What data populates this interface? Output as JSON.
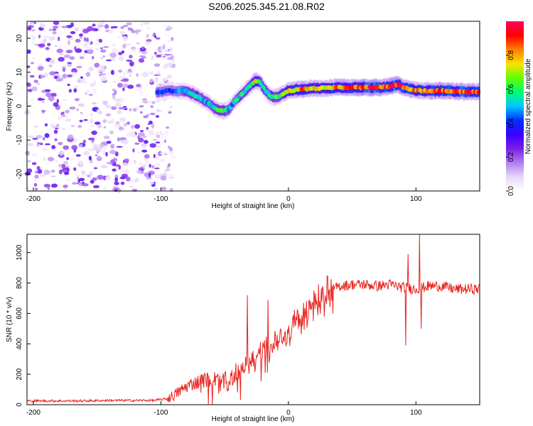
{
  "figure_title": "S206.2025.345.21.08.R02",
  "chart_data": [
    {
      "type": "heatmap",
      "name": "spectrogram",
      "xlabel": "Height of straight line (km)",
      "ylabel": "Frequency (Hz)",
      "xlim": [
        -205,
        150
      ],
      "ylim": [
        -25,
        25
      ],
      "xticks": [
        -200,
        -100,
        0,
        100
      ],
      "yticks": [
        20,
        10,
        0,
        -10,
        -20
      ],
      "colorbar": {
        "label": "Normalized spectral amplitude",
        "range": [
          0,
          1
        ],
        "ticks": [
          0.0,
          0.2,
          0.4,
          0.6,
          0.8
        ],
        "colormap": [
          "#ffffff",
          "#e8d8f8",
          "#b07df0",
          "#7a1fe8",
          "#3a00ff",
          "#0030ff",
          "#00c8ff",
          "#00ff70",
          "#60ff00",
          "#ffe000",
          "#ff8000",
          "#ff0000",
          "#ff0060"
        ]
      },
      "noise_region_x": [
        -205,
        -90
      ],
      "ridge": {
        "x": [
          -103,
          -95,
          -88,
          -80,
          -72,
          -65,
          -58,
          -52,
          -47,
          -43,
          -38,
          -34,
          -30,
          -26,
          -22,
          -18,
          -14,
          -10,
          -5,
          0,
          10,
          25,
          40,
          55,
          70,
          80,
          86,
          90,
          95,
          100,
          110,
          125,
          140,
          150
        ],
        "freq": [
          4,
          4.5,
          4.5,
          4.5,
          3,
          1.5,
          -0.5,
          -1.5,
          -1,
          1,
          3,
          4.5,
          6,
          7.5,
          7,
          4.5,
          3,
          2.5,
          3.5,
          4.5,
          5,
          5.3,
          5.5,
          5.5,
          5.5,
          5.8,
          6.5,
          5.5,
          5,
          4.6,
          4.5,
          4.5,
          4.2,
          4.2
        ],
        "peak_amplitude": [
          0.45,
          0.4,
          0.42,
          0.5,
          0.55,
          0.5,
          0.55,
          0.6,
          0.5,
          0.5,
          0.55,
          0.55,
          0.6,
          0.7,
          0.65,
          0.6,
          0.55,
          0.6,
          0.65,
          0.75,
          0.8,
          0.75,
          0.8,
          0.9,
          0.95,
          0.9,
          0.95,
          0.85,
          0.85,
          0.8,
          0.85,
          0.9,
          0.9,
          0.85
        ]
      }
    },
    {
      "type": "line",
      "name": "snr",
      "xlabel": "Height of straight line (km)",
      "ylabel": "SNR (10 * v/v)",
      "xlim": [
        -205,
        150
      ],
      "ylim": [
        0,
        1120
      ],
      "xticks": [
        -200,
        -100,
        0,
        100
      ],
      "yticks": [
        0,
        200,
        400,
        600,
        800,
        1000
      ],
      "color": "#e8241e",
      "series": [
        {
          "name": "SNR",
          "x": [
            -205,
            -180,
            -160,
            -140,
            -120,
            -105,
            -95,
            -90,
            -85,
            -80,
            -75,
            -70,
            -65,
            -60,
            -55,
            -50,
            -45,
            -40,
            -35,
            -30,
            -25,
            -20,
            -15,
            -10,
            -5,
            0,
            5,
            10,
            15,
            20,
            25,
            30,
            35,
            40,
            50,
            60,
            70,
            80,
            90,
            100,
            110,
            120,
            130,
            140,
            150
          ],
          "y": [
            25,
            25,
            25,
            28,
            28,
            28,
            40,
            60,
            90,
            120,
            140,
            150,
            165,
            170,
            160,
            150,
            180,
            220,
            250,
            280,
            320,
            350,
            380,
            410,
            450,
            480,
            540,
            580,
            620,
            660,
            700,
            740,
            760,
            780,
            790,
            790,
            780,
            790,
            770,
            760,
            780,
            780,
            760,
            760,
            760
          ]
        }
      ],
      "spikes": [
        {
          "x": -32,
          "y": 720
        },
        {
          "x": -16,
          "y": 690
        },
        {
          "x": 92,
          "y": 390
        },
        {
          "x": 94,
          "y": 990
        },
        {
          "x": 103,
          "y": 1120
        },
        {
          "x": 104,
          "y": 500
        }
      ]
    }
  ]
}
